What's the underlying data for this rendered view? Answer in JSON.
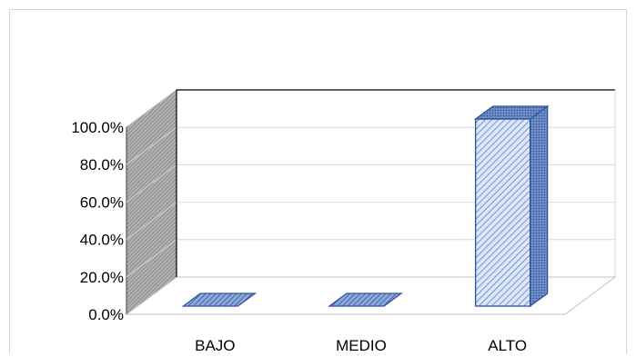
{
  "chart_data": {
    "type": "bar",
    "title": "",
    "xlabel": "",
    "ylabel": "",
    "categories": [
      "BAJO",
      "MEDIO",
      "ALTO"
    ],
    "values": [
      0.0,
      0.0,
      100.0
    ],
    "value_format": "percent_one_decimal",
    "ylim": [
      0,
      100
    ],
    "yticks": [
      0,
      20,
      40,
      60,
      80,
      100
    ],
    "ytick_labels": [
      "0.0%",
      "20.0%",
      "40.0%",
      "60.0%",
      "80.0%",
      "100.0%"
    ],
    "grid": true,
    "legend": "none",
    "style": "3d-column",
    "colors": {
      "bar_fill": "#dce6f7",
      "bar_hatch": "#4a72c4",
      "bar_edge": "#2f5597",
      "side_wall": "#a6a6a6",
      "gridline": "#d9d9d9"
    }
  }
}
